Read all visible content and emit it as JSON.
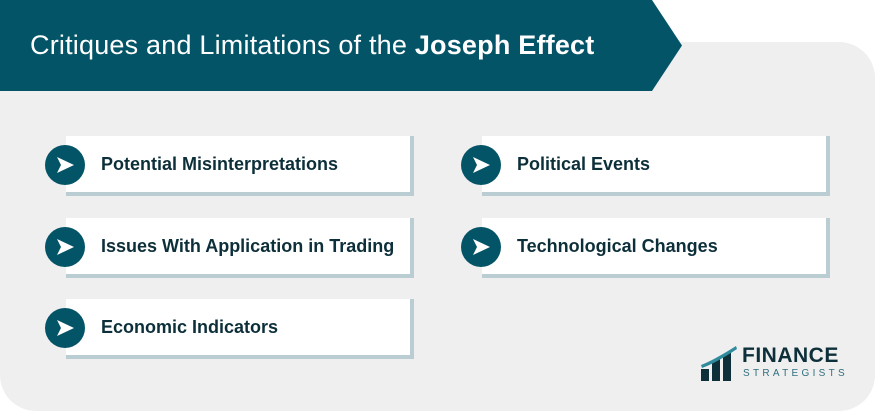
{
  "header": {
    "title_regular": "Critiques and Limitations of the",
    "title_bold": "Joseph Effect"
  },
  "items": [
    {
      "label": "Potential Misinterpretations"
    },
    {
      "label": "Political Events"
    },
    {
      "label": "Issues With Application in Trading"
    },
    {
      "label": "Technological Changes"
    },
    {
      "label": "Economic Indicators"
    }
  ],
  "logo": {
    "line1": "FINANCE",
    "line2": "STRATEGISTS"
  },
  "colors": {
    "primary": "#045468",
    "panel": "#efefef",
    "card_shadow": "#b9cdd3",
    "text_dark": "#0d2f3a"
  }
}
